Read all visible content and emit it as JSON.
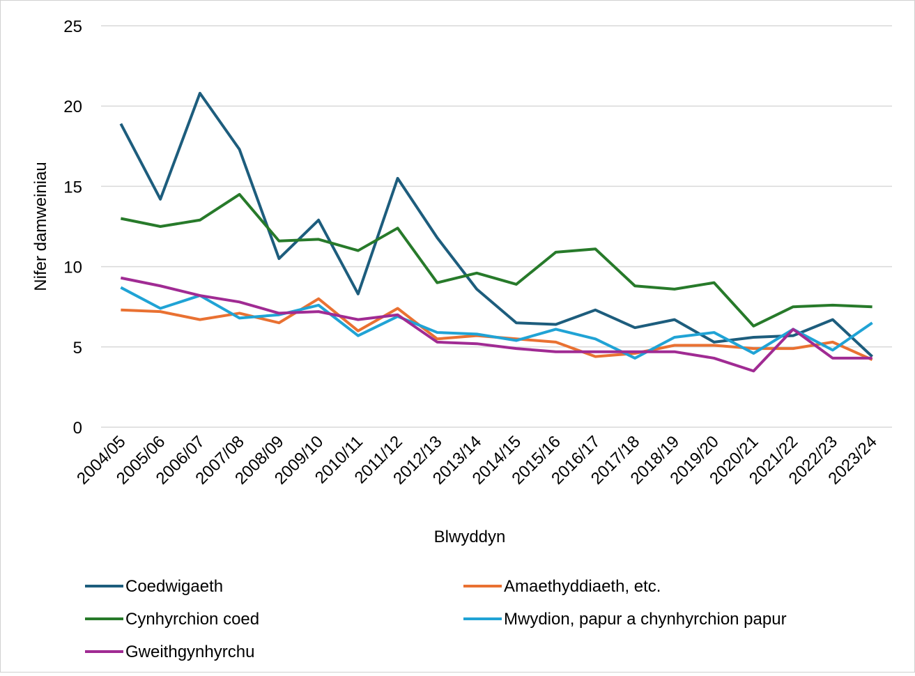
{
  "chart_data": {
    "type": "line",
    "x_label": "Blwyddyn",
    "y_label": "Nifer damweiniau",
    "categories": [
      "2004/05",
      "2005/06",
      "2006/07",
      "2007/08",
      "2008/09",
      "2009/10",
      "2010/11",
      "2011/12",
      "2012/13",
      "2013/14",
      "2014/15",
      "2015/16",
      "2016/17",
      "2017/18",
      "2018/19",
      "2019/20",
      "2020/21",
      "2021/22",
      "2022/23",
      "2023/24"
    ],
    "series": [
      {
        "name": "Coedwigaeth",
        "color": "#1d5d7d",
        "values": [
          18.9,
          14.2,
          20.8,
          17.3,
          10.5,
          12.9,
          8.3,
          15.5,
          11.8,
          8.6,
          6.5,
          6.4,
          7.3,
          6.2,
          6.7,
          5.3,
          5.6,
          5.7,
          6.7,
          4.4
        ]
      },
      {
        "name": "Amaethyddiaeth, etc.",
        "color": "#e97132",
        "values": [
          7.3,
          7.2,
          6.7,
          7.1,
          6.5,
          8.0,
          6.0,
          7.4,
          5.5,
          5.7,
          5.5,
          5.3,
          4.4,
          4.6,
          5.1,
          5.1,
          4.9,
          4.9,
          5.3,
          4.2
        ]
      },
      {
        "name": "Cynhyrchion coed",
        "color": "#277a2a",
        "values": [
          13.0,
          12.5,
          12.9,
          14.5,
          11.6,
          11.7,
          11.0,
          12.4,
          9.0,
          9.6,
          8.9,
          10.9,
          11.1,
          8.8,
          8.6,
          9.0,
          6.3,
          7.5,
          7.6,
          7.5
        ]
      },
      {
        "name": "Mwydion, papur a chynhyrchion papur",
        "color": "#20a3d5",
        "values": [
          8.7,
          7.4,
          8.2,
          6.8,
          7.0,
          7.6,
          5.7,
          6.9,
          5.9,
          5.8,
          5.4,
          6.1,
          5.5,
          4.3,
          5.6,
          5.9,
          4.6,
          6.1,
          4.8,
          6.5
        ]
      },
      {
        "name": "Gweithgynhyrchu",
        "color": "#a02b93",
        "values": [
          9.3,
          8.8,
          8.2,
          7.8,
          7.1,
          7.2,
          6.7,
          7.0,
          5.3,
          5.2,
          4.9,
          4.7,
          4.7,
          4.7,
          4.7,
          4.3,
          3.5,
          6.1,
          4.3,
          4.3
        ]
      }
    ],
    "ylim": [
      0,
      25
    ],
    "yticks": [
      0,
      5,
      10,
      15,
      20,
      25
    ],
    "grid": true,
    "legend": "bottom"
  }
}
